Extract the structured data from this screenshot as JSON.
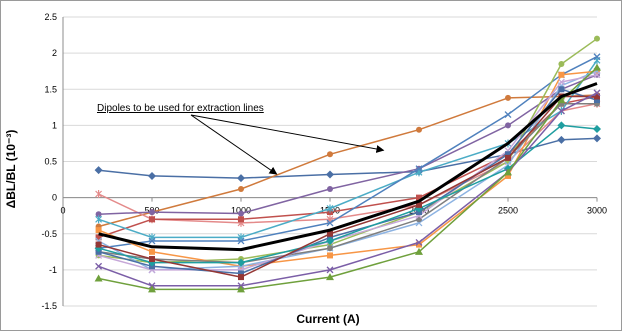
{
  "chart_data": {
    "type": "line",
    "title": "",
    "xlabel": "Current (A)",
    "ylabel": "ΔBL/BL (10⁻³)",
    "xlim": [
      0,
      3000
    ],
    "ylim": [
      -1.5,
      2.5
    ],
    "x_ticks": [
      0,
      500,
      1000,
      1500,
      2000,
      2500,
      3000
    ],
    "x_tick_labels": [
      "0",
      "500",
      "1000",
      "1500",
      "2000",
      "2500",
      "3000"
    ],
    "y_ticks": [
      -1.5,
      -1,
      -0.5,
      0,
      0.5,
      1,
      1.5,
      2,
      2.5
    ],
    "y_tick_labels": [
      "-1.5",
      "-1",
      "-0.5",
      "0",
      "0.5",
      "1",
      "1.5",
      "2",
      "2.5"
    ],
    "grid": true,
    "legend": "none",
    "annotations": [
      {
        "text": "Dipoles to be used for extraction lines",
        "underline": true,
        "arrows_to": [
          {
            "x": 1200,
            "y": 0.27
          },
          {
            "x": 1800,
            "y": 0.6
          }
        ]
      }
    ],
    "x": [
      200,
      500,
      1000,
      1500,
      2000,
      2500,
      2800,
      3000
    ],
    "series": [
      {
        "color": "#4a6fa5",
        "marker": "diamond",
        "values": [
          0.38,
          0.3,
          0.27,
          0.32,
          0.36,
          0.6,
          0.8,
          0.82
        ]
      },
      {
        "color": "#d07a3c",
        "marker": "circle",
        "values": [
          -0.4,
          -0.2,
          0.12,
          0.6,
          0.94,
          1.38,
          1.4,
          1.42
        ]
      },
      {
        "color": "#e48a8a",
        "marker": "asterisk",
        "values": [
          0.05,
          -0.3,
          -0.35,
          -0.3,
          -0.1,
          0.5,
          1.2,
          1.3
        ]
      },
      {
        "color": "#8064a2",
        "marker": "circle",
        "values": [
          -0.23,
          -0.2,
          -0.22,
          0.12,
          0.4,
          1.0,
          1.5,
          1.7
        ]
      },
      {
        "color": "#c0504d",
        "marker": "square",
        "values": [
          -0.55,
          -0.3,
          -0.3,
          -0.2,
          0.0,
          0.6,
          1.3,
          1.4
        ]
      },
      {
        "color": "#4bacc6",
        "marker": "asterisk",
        "values": [
          -0.3,
          -0.55,
          -0.55,
          -0.15,
          0.35,
          0.75,
          1.2,
          1.9
        ]
      },
      {
        "color": "#4f81bd",
        "marker": "x",
        "values": [
          -0.7,
          -0.6,
          -0.6,
          -0.35,
          0.4,
          1.15,
          1.7,
          1.95
        ]
      },
      {
        "color": "#9bbb59",
        "marker": "circle",
        "values": [
          -0.8,
          -0.9,
          -0.85,
          -0.65,
          -0.2,
          0.5,
          1.85,
          2.2
        ]
      },
      {
        "color": "#f79646",
        "marker": "square",
        "values": [
          -0.45,
          -0.75,
          -0.95,
          -0.8,
          -0.65,
          0.3,
          1.7,
          1.75
        ]
      },
      {
        "color": "#8db3e2",
        "marker": "x",
        "values": [
          -0.6,
          -1.0,
          -0.95,
          -0.7,
          -0.35,
          0.45,
          1.55,
          1.75
        ]
      },
      {
        "color": "#7f7f7f",
        "marker": "circle",
        "values": [
          -0.75,
          -0.85,
          -0.9,
          -0.7,
          -0.3,
          0.55,
          1.3,
          1.3
        ]
      },
      {
        "color": "#c6a7d8",
        "marker": "x",
        "values": [
          -0.8,
          -1.0,
          -1.0,
          -0.6,
          -0.25,
          0.65,
          1.6,
          1.7
        ]
      },
      {
        "color": "#4a6fa5",
        "marker": "square",
        "values": [
          -0.75,
          -0.95,
          -1.05,
          -0.55,
          -0.2,
          0.6,
          1.5,
          1.35
        ]
      },
      {
        "color": "#1f9ea0",
        "marker": "diamond",
        "values": [
          -0.7,
          -0.9,
          -0.9,
          -0.6,
          -0.15,
          0.4,
          1.0,
          0.95
        ]
      },
      {
        "color": "#953735",
        "marker": "square",
        "values": [
          -0.65,
          -0.85,
          -1.1,
          -0.5,
          -0.1,
          0.55,
          1.4,
          1.4
        ]
      },
      {
        "color": "#7b5ea7",
        "marker": "x",
        "values": [
          -0.95,
          -1.22,
          -1.22,
          -1.0,
          -0.62,
          0.35,
          1.2,
          1.45
        ]
      },
      {
        "color": "#6fa03c",
        "marker": "triangle",
        "values": [
          -1.12,
          -1.27,
          -1.27,
          -1.1,
          -0.75,
          0.35,
          1.35,
          1.8
        ]
      },
      {
        "color": "#000000",
        "marker": "none",
        "width": 3,
        "values": [
          -0.5,
          -0.68,
          -0.72,
          -0.45,
          -0.05,
          0.75,
          1.4,
          1.58
        ]
      }
    ]
  }
}
